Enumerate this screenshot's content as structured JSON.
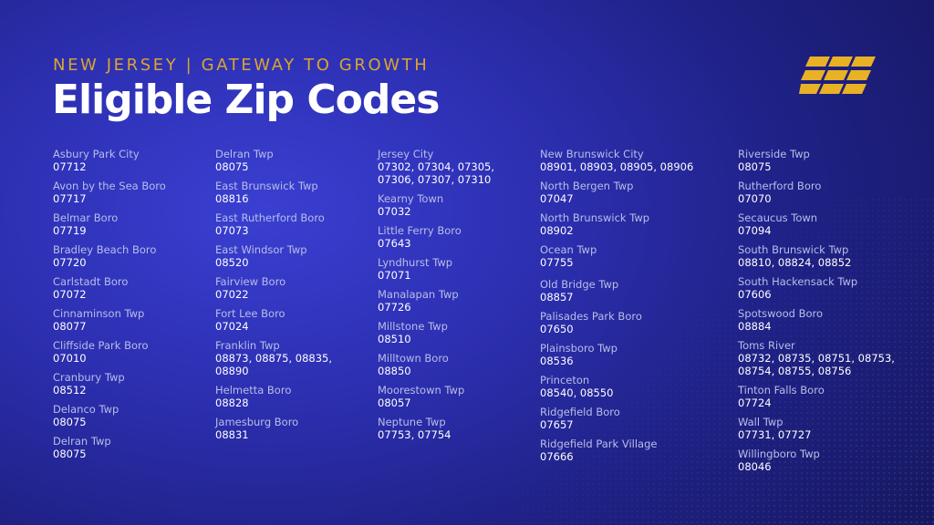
{
  "header": {
    "tagline": "NEW JERSEY | GATEWAY TO GROWTH",
    "title": "Eligible Zip Codes",
    "accent_color": "#d9a62e",
    "logo_icon": "stacked-bars-logo"
  },
  "columns": [
    [
      {
        "name": "Asbury Park City",
        "zip": "07712"
      },
      {
        "name": "Avon by the Sea Boro",
        "zip": "07717"
      },
      {
        "name": "Belmar Boro",
        "zip": "07719"
      },
      {
        "name": "Bradley Beach Boro",
        "zip": "07720"
      },
      {
        "name": "Carlstadt Boro",
        "zip": "07072"
      },
      {
        "name": "Cinnaminson Twp",
        "zip": "08077"
      },
      {
        "name": "Cliffside Park Boro",
        "zip": "07010"
      },
      {
        "name": "Cranbury Twp",
        "zip": "08512"
      },
      {
        "name": "Delanco Twp",
        "zip": "08075"
      },
      {
        "name": "Delran Twp",
        "zip": "08075"
      }
    ],
    [
      {
        "name": "Delran Twp",
        "zip": "08075"
      },
      {
        "name": "East Brunswick Twp",
        "zip": "08816"
      },
      {
        "name": "East Rutherford Boro",
        "zip": "07073"
      },
      {
        "name": "East Windsor Twp",
        "zip": "08520"
      },
      {
        "name": "Fairview Boro",
        "zip": "07022"
      },
      {
        "name": "Fort Lee Boro",
        "zip": "07024"
      },
      {
        "name": "Franklin Twp",
        "zip": "08873, 08875, 08835,\n08890"
      },
      {
        "name": "Helmetta Boro",
        "zip": "08828"
      },
      {
        "name": "Jamesburg Boro",
        "zip": "08831"
      }
    ],
    [
      {
        "name": "Jersey City",
        "zip": "07302, 07304, 07305,\n07306, 07307, 07310"
      },
      {
        "name": "Kearny Town",
        "zip": "07032"
      },
      {
        "name": "Little Ferry Boro",
        "zip": "07643"
      },
      {
        "name": "Lyndhurst Twp",
        "zip": "07071"
      },
      {
        "name": "Manalapan Twp",
        "zip": "07726"
      },
      {
        "name": "Millstone Twp",
        "zip": "08510"
      },
      {
        "name": "Milltown Boro",
        "zip": "08850"
      },
      {
        "name": "Moorestown Twp",
        "zip": "08057"
      },
      {
        "name": "Neptune Twp",
        "zip": "07753, 07754"
      }
    ],
    [
      {
        "name": "New Brunswick City",
        "zip": "08901, 08903, 08905, 08906"
      },
      {
        "name": "North Bergen Twp",
        "zip": " 07047"
      },
      {
        "name": "North Brunswick Twp",
        "zip": "08902"
      },
      {
        "name": "Ocean Twp",
        "zip": "07755"
      },
      {
        "name": "Old Bridge Twp",
        "zip": "08857"
      },
      {
        "name": "Palisades Park Boro",
        "zip": "07650"
      },
      {
        "name": "Plainsboro Twp",
        "zip": "08536"
      },
      {
        "name": "Princeton",
        "zip": "08540, 08550"
      },
      {
        "name": "Ridgefield Boro",
        "zip": "07657"
      },
      {
        "name": "Ridgefield Park Village",
        "zip": "07666"
      }
    ],
    [
      {
        "name": "Riverside Twp",
        "zip": "08075"
      },
      {
        "name": "Rutherford Boro",
        "zip": "07070"
      },
      {
        "name": "Secaucus Town",
        "zip": "07094"
      },
      {
        "name": "South Brunswick Twp",
        "zip": "08810, 08824, 08852"
      },
      {
        "name": "South Hackensack Twp",
        "zip": "07606"
      },
      {
        "name": "Spotswood Boro",
        "zip": "08884"
      },
      {
        "name": "Toms River",
        "zip": "08732, 08735, 08751, 08753,\n08754, 08755, 08756"
      },
      {
        "name": "Tinton Falls Boro",
        "zip": "07724"
      },
      {
        "name": "Wall Twp",
        "zip": "07731, 07727"
      },
      {
        "name": "Willingboro Twp",
        "zip": "08046"
      }
    ]
  ]
}
